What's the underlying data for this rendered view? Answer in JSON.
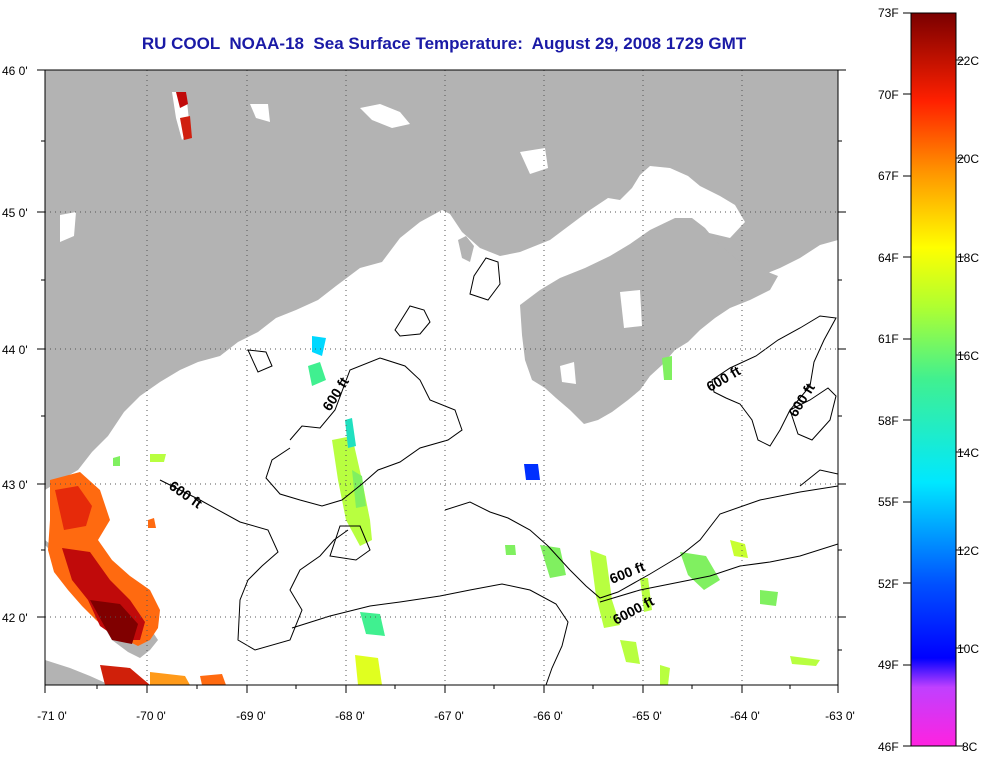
{
  "title": "RU COOL  NOAA-18  Sea Surface Temperature:  August 29, 2008 1729 GMT",
  "map": {
    "lon_labels": [
      "-71 0'",
      "-70 0'",
      "-69 0'",
      "-68 0'",
      "-67 0'",
      "-66 0'",
      "-65 0'",
      "-64 0'",
      "-63 0'"
    ],
    "lat_labels": [
      "46 0'",
      "45 0'",
      "44 0'",
      "43 0'",
      "42 0'"
    ],
    "lon_range": [
      -71,
      -63
    ],
    "lat_range": [
      41.5,
      46.05
    ],
    "contour_labels": [
      "600 ft",
      "600 ft",
      "600 ft",
      "600 ft",
      "600 ft",
      "6000 ft"
    ],
    "land_color": "#b3b3b3",
    "cloud_color": "#ffffff"
  },
  "colorbar": {
    "fahrenheit_labels": [
      "73F",
      "70F",
      "67F",
      "64F",
      "61F",
      "58F",
      "55F",
      "52F",
      "49F",
      "46F"
    ],
    "celsius_labels": [
      "22C",
      "20C",
      "18C",
      "16C",
      "14C",
      "12C",
      "10C",
      "8C"
    ],
    "range_f": [
      46,
      73
    ],
    "range_c": [
      8,
      23
    ]
  }
}
